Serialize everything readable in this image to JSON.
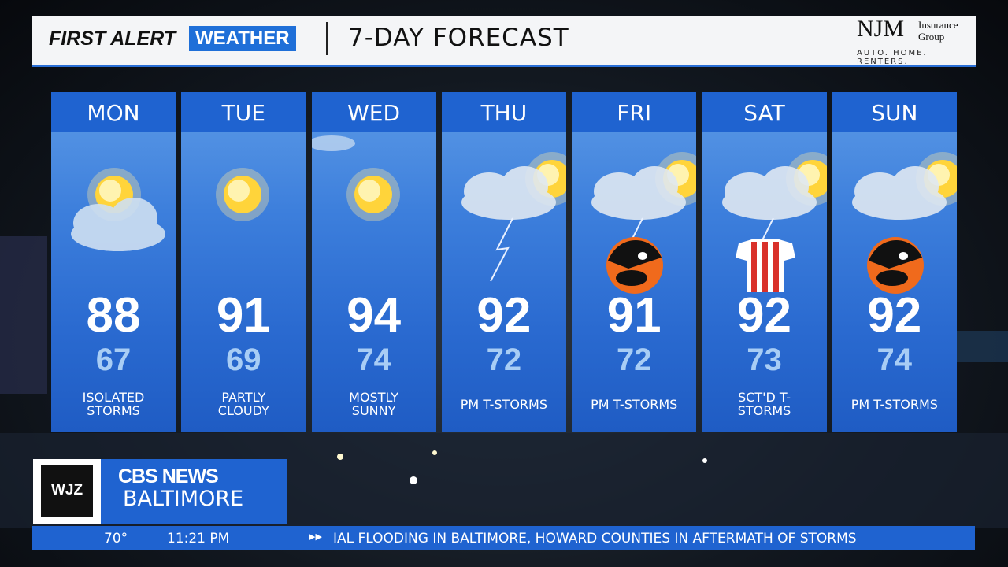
{
  "header": {
    "brand_left": "FIRST ALERT",
    "brand_right": "WEATHER",
    "title": "7-DAY FORECAST",
    "sponsor": "NJM",
    "sponsor_sub": "Insurance Group",
    "sponsor_tagline": "AUTO. HOME. RENTERS."
  },
  "forecast": [
    {
      "day": "MON",
      "high": 88,
      "low": 67,
      "condition": "ISOLATED STORMS"
    },
    {
      "day": "TUE",
      "high": 91,
      "low": 69,
      "condition": "PARTLY CLOUDY"
    },
    {
      "day": "WED",
      "high": 94,
      "low": 74,
      "condition": "MOSTLY SUNNY"
    },
    {
      "day": "THU",
      "high": 92,
      "low": 72,
      "condition": "PM T-STORMS"
    },
    {
      "day": "FRI",
      "high": 91,
      "low": 72,
      "condition": "PM T-STORMS"
    },
    {
      "day": "SAT",
      "high": 92,
      "low": 73,
      "condition": "SCT'D T-STORMS"
    },
    {
      "day": "SUN",
      "high": 92,
      "low": 74,
      "condition": "PM T-STORMS"
    }
  ],
  "footer": {
    "station": "WJZ",
    "network": "CBS NEWS",
    "city": "BALTIMORE",
    "temperature": "70°",
    "time": "11:21 PM",
    "ticker": "IAL FLOODING IN BALTIMORE, HOWARD COUNTIES IN AFTERMATH OF STORMS"
  }
}
